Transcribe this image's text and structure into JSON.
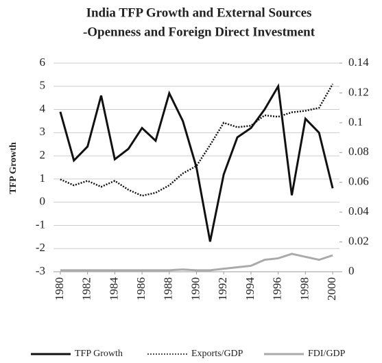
{
  "chart_data": {
    "type": "line",
    "title": [
      "India TFP Growth and External Sources",
      "-Openness and Foreign Direct Investment"
    ],
    "y_label": "TFP Growth",
    "x": [
      1980,
      1981,
      1982,
      1983,
      1984,
      1985,
      1986,
      1987,
      1988,
      1989,
      1990,
      1991,
      1992,
      1993,
      1994,
      1995,
      1996,
      1997,
      1998,
      1999,
      2000
    ],
    "xlim": [
      1979.5,
      2000.5
    ],
    "xticks": [
      1980,
      1982,
      1984,
      1986,
      1988,
      1990,
      1992,
      1994,
      1996,
      1998,
      2000
    ],
    "ylim": [
      -3,
      6
    ],
    "yticks": [
      -3,
      -2,
      -1,
      0,
      1,
      2,
      3,
      4,
      5,
      6
    ],
    "y2lim": [
      0,
      0.14
    ],
    "y2ticks": [
      0,
      0.02,
      0.04,
      0.06,
      0.08,
      0.1,
      0.12,
      0.14
    ],
    "grid": true,
    "legend": "bottom",
    "series": [
      {
        "name": "TFP Growth",
        "color": "#111111",
        "style": "solid",
        "values": [
          3.9,
          1.8,
          2.4,
          4.6,
          1.85,
          2.3,
          3.2,
          2.65,
          4.7,
          3.5,
          1.5,
          -1.7,
          1.2,
          2.8,
          3.2,
          4.0,
          5.0,
          0.3,
          3.6,
          3.0,
          0.6
        ]
      },
      {
        "name": "Exports/GDP",
        "color": "#111111",
        "style": "dotted",
        "axis": "y2",
        "values": [
          0.062,
          0.058,
          0.061,
          0.057,
          0.061,
          0.055,
          0.051,
          0.053,
          0.058,
          0.066,
          0.071,
          0.085,
          0.1,
          0.097,
          0.098,
          0.105,
          0.104,
          0.107,
          0.108,
          0.11,
          0.126
        ]
      },
      {
        "name": "FDI/GDP",
        "color": "#aaaaaa",
        "style": "solid",
        "axis": "y2",
        "values": [
          0.001,
          0.001,
          0.001,
          0.001,
          0.001,
          0.001,
          0.001,
          0.001,
          0.001,
          0.0015,
          0.001,
          0.001,
          0.002,
          0.003,
          0.004,
          0.008,
          0.009,
          0.012,
          0.01,
          0.008,
          0.011
        ]
      }
    ]
  }
}
